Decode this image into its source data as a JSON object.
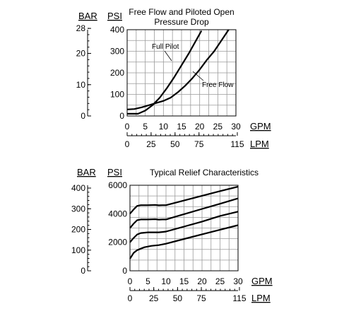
{
  "chart_data": [
    {
      "type": "line",
      "title": [
        "Free Flow and Piloted Open",
        "Pressure Drop"
      ],
      "left_axis_unit": "BAR",
      "y_axis_unit": "PSI",
      "x_axis_unit": "GPM",
      "x2_axis_unit": "LPM",
      "xlim": [
        0,
        30
      ],
      "ylim": [
        0,
        400
      ],
      "x_ticks": [
        "0",
        "5",
        "10",
        "15",
        "20",
        "25",
        "30"
      ],
      "y_ticks": [
        "0",
        "100",
        "200",
        "300",
        "400"
      ],
      "bar_ticks": [
        "0",
        "10",
        "20",
        "28"
      ],
      "lpm_ticks": [
        "0",
        "25",
        "50",
        "75",
        "115"
      ],
      "grid": true,
      "series": [
        {
          "name": "Full Pilot",
          "x": [
            0,
            3,
            5,
            7,
            9,
            11,
            13,
            15,
            17,
            19,
            20.5
          ],
          "y": [
            10,
            10,
            25,
            50,
            85,
            130,
            180,
            235,
            290,
            350,
            395
          ]
        },
        {
          "name": "Free Flow",
          "x": [
            0,
            2,
            4,
            6,
            8,
            10,
            12,
            14,
            16,
            18,
            20,
            22,
            24,
            26,
            28
          ],
          "y": [
            30,
            32,
            40,
            50,
            60,
            70,
            85,
            110,
            140,
            175,
            215,
            260,
            300,
            350,
            400
          ]
        }
      ]
    },
    {
      "type": "line",
      "title": "Typical Relief Characteristics",
      "left_axis_unit": "BAR",
      "y_axis_unit": "PSI",
      "x_axis_unit": "GPM",
      "x2_axis_unit": "LPM",
      "xlim": [
        0,
        30
      ],
      "ylim": [
        0,
        6000
      ],
      "x_ticks": [
        "0",
        "5",
        "10",
        "15",
        "20",
        "25",
        "30"
      ],
      "y_ticks": [
        "0",
        "2000",
        "4000",
        "6000"
      ],
      "bar_ticks": [
        "0",
        "100",
        "200",
        "300",
        "400"
      ],
      "lpm_ticks": [
        "0",
        "25",
        "50",
        "75",
        "115"
      ],
      "grid": true,
      "series": [
        {
          "x": [
            0,
            1,
            2,
            3,
            5,
            7,
            8,
            9,
            10,
            15,
            20,
            25,
            30
          ],
          "y": [
            4000,
            4300,
            4550,
            4600,
            4600,
            4620,
            4590,
            4600,
            4600,
            4930,
            5260,
            5590,
            5900
          ]
        },
        {
          "x": [
            0,
            1,
            2,
            3,
            5,
            7,
            8,
            9,
            10,
            15,
            20,
            25,
            30
          ],
          "y": [
            3000,
            3300,
            3550,
            3600,
            3600,
            3620,
            3590,
            3600,
            3600,
            3970,
            4340,
            4700,
            5080
          ]
        },
        {
          "x": [
            0,
            1,
            2,
            3,
            5,
            7,
            8,
            9,
            10,
            15,
            20,
            25,
            30
          ],
          "y": [
            2000,
            2300,
            2550,
            2650,
            2700,
            2700,
            2700,
            2720,
            2750,
            3100,
            3450,
            3850,
            4150
          ]
        },
        {
          "x": [
            0,
            0.5,
            1,
            2,
            3,
            4,
            5,
            6,
            8,
            10,
            15,
            20,
            25,
            30
          ],
          "y": [
            850,
            1050,
            1250,
            1450,
            1550,
            1650,
            1700,
            1750,
            1800,
            1900,
            2230,
            2560,
            2880,
            3200
          ]
        }
      ]
    }
  ]
}
